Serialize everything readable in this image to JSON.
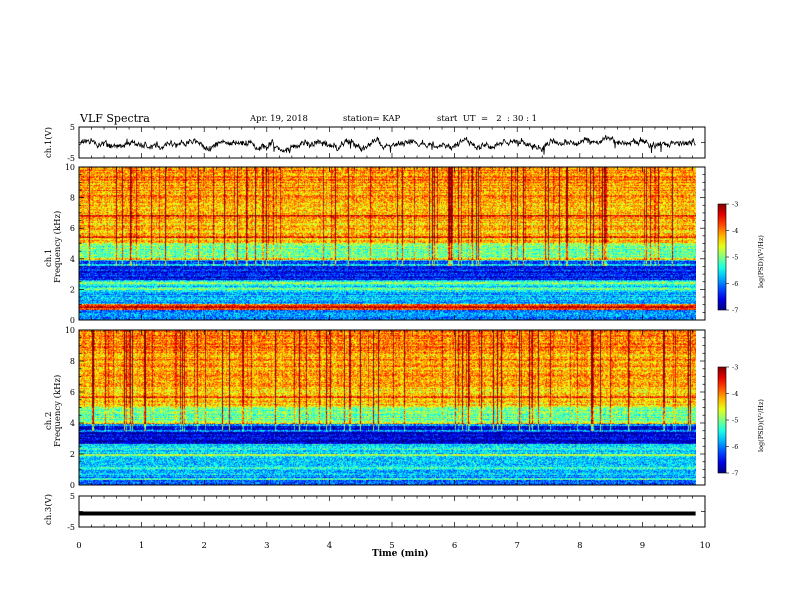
{
  "header": {
    "title": "VLF Spectra",
    "date": "Apr. 19, 2018",
    "station": "station= KAP",
    "start": "start  UT  =   2  : 30 : 1"
  },
  "chart_data": [
    {
      "type": "line",
      "ylabel": "ch.1(V)",
      "ylim": [
        -5,
        5
      ],
      "yticks": [
        "5",
        "-5"
      ],
      "xlim": [
        0,
        10
      ],
      "description_of_trace": "noisy waveform between about -3 and +2 V across 0-9.8 min"
    },
    {
      "type": "heatmap",
      "ylabel": "Frequency (kHz)",
      "ylabel_prefix": "ch.1",
      "ylim": [
        0,
        10
      ],
      "yticks": [
        "0",
        "2",
        "4",
        "6",
        "8",
        "10"
      ],
      "xlim": [
        0,
        10
      ],
      "colorbar": {
        "label": "log(PSD)(V²/Hz)",
        "range": [
          -7,
          -3
        ],
        "ticks": [
          "-3",
          "-4",
          "-5",
          "-6",
          "-7"
        ]
      }
    },
    {
      "type": "heatmap",
      "ylabel": "Frequency (kHz)",
      "ylabel_prefix": "ch.2",
      "ylim": [
        0,
        10
      ],
      "yticks": [
        "0",
        "2",
        "4",
        "6",
        "8",
        "10"
      ],
      "xlim": [
        0,
        10
      ],
      "colorbar": {
        "label": "log(PSD)(V²/Hz)",
        "range": [
          -7,
          -3
        ],
        "ticks": [
          "-3",
          "-4",
          "-5",
          "-6",
          "-7"
        ]
      }
    },
    {
      "type": "line",
      "ylabel": "ch.3(V)",
      "ylim": [
        -5,
        5
      ],
      "yticks": [
        "5",
        "-5"
      ],
      "xlim": [
        0,
        10
      ],
      "xticks": [
        "0",
        "1",
        "2",
        "3",
        "4",
        "5",
        "6",
        "7",
        "8",
        "9",
        "10"
      ],
      "xlabel": "Time  (min)",
      "constant_value": 0
    }
  ]
}
